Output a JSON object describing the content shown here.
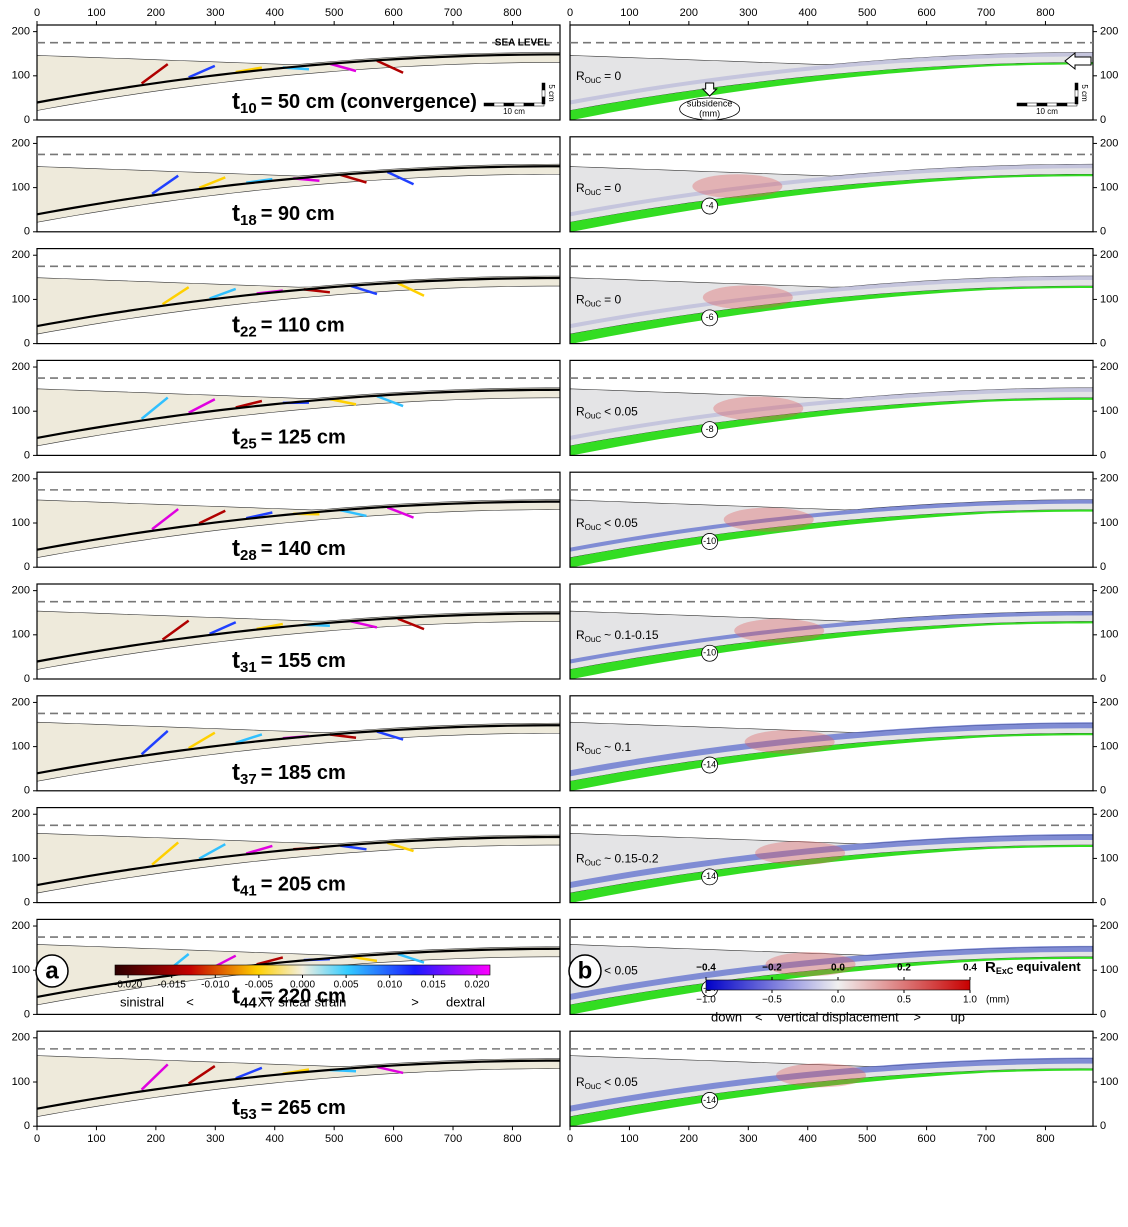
{
  "axes": {
    "xlim": [
      0,
      880
    ],
    "xticks": [
      0,
      100,
      200,
      300,
      400,
      500,
      600,
      700,
      800
    ],
    "ylim": [
      0,
      215
    ],
    "yticks": [
      0,
      100,
      200
    ],
    "sea_level": 175
  },
  "sea_level_label": "SEA LEVEL",
  "scale_bar": {
    "horizontal": "10 cm",
    "vertical": "5 cm"
  },
  "subsidence_label": {
    "line1": "subsidence",
    "line2": "(mm)"
  },
  "panel_a": {
    "label": "a",
    "rows": [
      {
        "t": "t",
        "sub": "10",
        "text": "= 50 cm (convergence)"
      },
      {
        "t": "t",
        "sub": "18",
        "text": "= 90 cm"
      },
      {
        "t": "t",
        "sub": "22",
        "text": "= 110 cm"
      },
      {
        "t": "t",
        "sub": "25",
        "text": "= 125 cm"
      },
      {
        "t": "t",
        "sub": "28",
        "text": "= 140 cm"
      },
      {
        "t": "t",
        "sub": "31",
        "text": "= 155 cm"
      },
      {
        "t": "t",
        "sub": "37",
        "text": "= 185 cm"
      },
      {
        "t": "t",
        "sub": "41",
        "text": "= 205 cm"
      },
      {
        "t": "t",
        "sub": "44",
        "text": "= 220 cm"
      },
      {
        "t": "t",
        "sub": "53",
        "text": "= 265 cm"
      }
    ]
  },
  "panel_b": {
    "label": "b",
    "rows": [
      {
        "r": "R",
        "sub": "OuC",
        "text": "= 0"
      },
      {
        "r": "R",
        "sub": "OuC",
        "text": "= 0",
        "subsidence": -4
      },
      {
        "r": "R",
        "sub": "OuC",
        "text": "= 0",
        "subsidence": -6
      },
      {
        "r": "R",
        "sub": "OuC",
        "text": "< 0.05",
        "subsidence": -8
      },
      {
        "r": "R",
        "sub": "OuC",
        "text": "< 0.05",
        "subsidence": -10
      },
      {
        "r": "R",
        "sub": "OuC",
        "text": "~ 0.1-0.15",
        "subsidence": -10
      },
      {
        "r": "R",
        "sub": "OuC",
        "text": "~ 0.1",
        "subsidence": -14
      },
      {
        "r": "R",
        "sub": "OuC",
        "text": "~ 0.15-0.2",
        "subsidence": -14
      },
      {
        "r": "R",
        "sub": "OuC",
        "text": "< 0.05",
        "subsidence": -14
      },
      {
        "r": "R",
        "sub": "OuC",
        "text": "< 0.05",
        "subsidence": -14
      }
    ]
  },
  "colorbar_a": {
    "lim": [
      -0.0215,
      0.0215
    ],
    "ticks": [
      {
        "value": -0.02,
        "label": "-0.020"
      },
      {
        "value": -0.015,
        "label": "-0.015"
      },
      {
        "value": -0.01,
        "label": "-0.010"
      },
      {
        "value": -0.005,
        "label": "-0.005"
      },
      {
        "value": 0,
        "label": "0.000"
      },
      {
        "value": 0.005,
        "label": "0.005"
      },
      {
        "value": 0.01,
        "label": "0.010"
      },
      {
        "value": 0.015,
        "label": "0.015"
      },
      {
        "value": 0.02,
        "label": "0.020"
      }
    ],
    "left": "sinistral",
    "lt": "<",
    "title": "XY shear strain",
    "gt": ">",
    "right": "dextral"
  },
  "colorbar_b": {
    "lim": [
      -1,
      1
    ],
    "ticks": [
      {
        "value": -1,
        "label": "−1.0"
      },
      {
        "value": -0.5,
        "label": "−0.5"
      },
      {
        "value": 0,
        "label": "0.0"
      },
      {
        "value": 0.5,
        "label": "0.5"
      },
      {
        "value": 1,
        "label": "1.0"
      }
    ],
    "top_lim": [
      -0.4,
      0.4
    ],
    "top_ticks": [
      {
        "value": -0.4,
        "label": "−0.4"
      },
      {
        "value": -0.2,
        "label": "−0.2"
      },
      {
        "value": 0,
        "label": "0.0"
      },
      {
        "value": 0.2,
        "label": "0.2"
      },
      {
        "value": 0.4,
        "label": "0.4"
      }
    ],
    "title_r": "R",
    "title_sub": "ExC",
    "title_rest": "equivalent",
    "unit": "(mm)",
    "left": "down",
    "lt": "<",
    "title": "vertical displacement",
    "gt": ">",
    "right": "up"
  }
}
